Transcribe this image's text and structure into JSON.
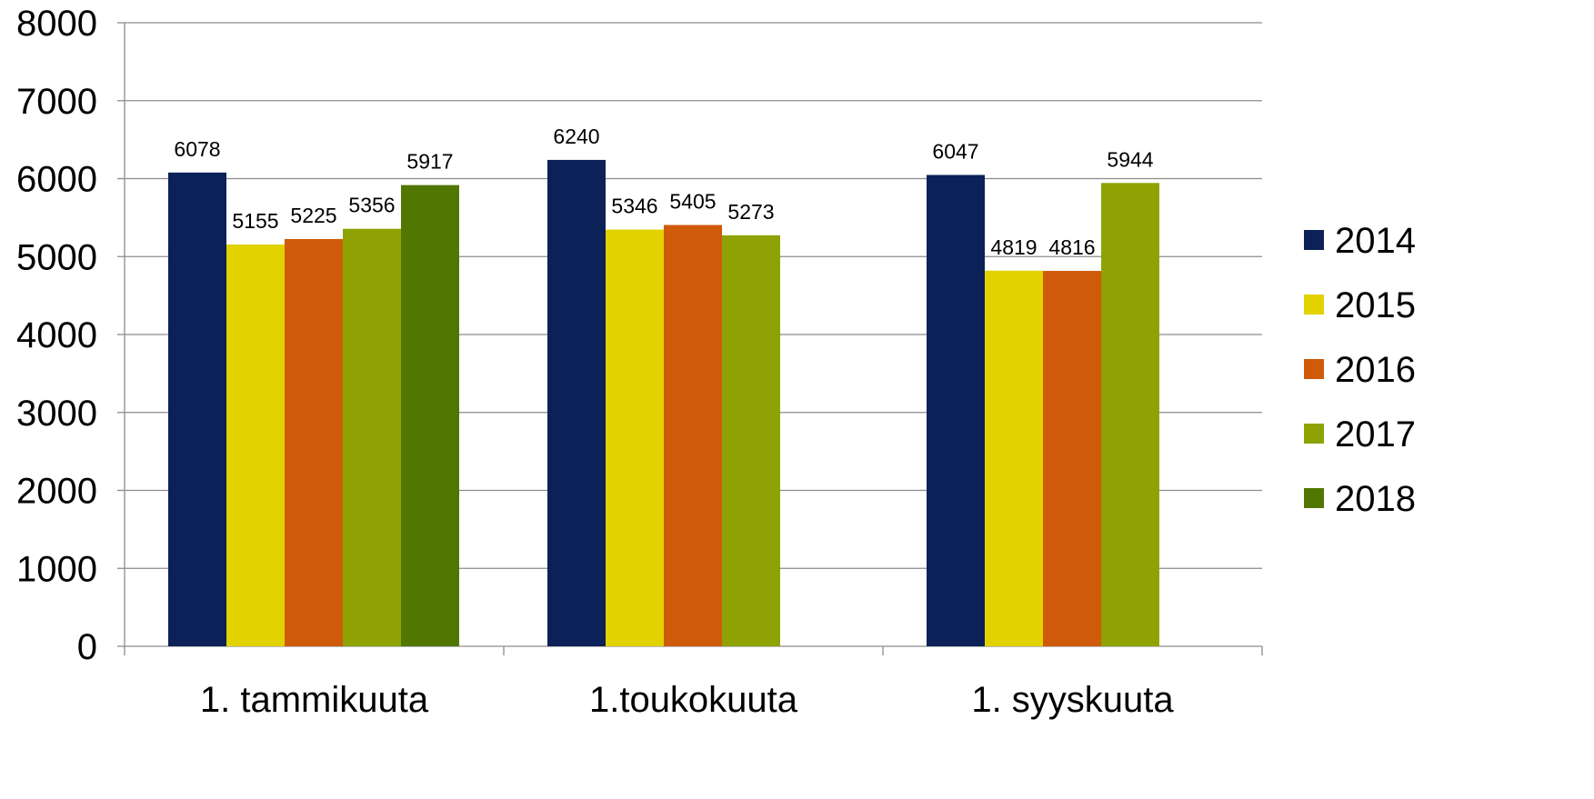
{
  "chart_data": {
    "type": "bar",
    "title": "",
    "xlabel": "",
    "ylabel": "",
    "ylim": [
      0,
      8000
    ],
    "yticks": [
      0,
      1000,
      2000,
      3000,
      4000,
      5000,
      6000,
      7000,
      8000
    ],
    "grid": true,
    "legend_position": "right",
    "categories": [
      "1. tammikuuta",
      "1.toukokuuta",
      "1. syyskuuta"
    ],
    "series": [
      {
        "name": "2014",
        "color": "#0b2157",
        "values": [
          6078,
          6240,
          6047
        ]
      },
      {
        "name": "2015",
        "color": "#e1d200",
        "values": [
          5155,
          5346,
          4819
        ]
      },
      {
        "name": "2016",
        "color": "#cf5a0a",
        "values": [
          5225,
          5405,
          4816
        ]
      },
      {
        "name": "2017",
        "color": "#8ea303",
        "values": [
          5356,
          5273,
          5944
        ]
      },
      {
        "name": "2018",
        "color": "#527602",
        "values": [
          5917,
          null,
          null
        ]
      }
    ]
  }
}
